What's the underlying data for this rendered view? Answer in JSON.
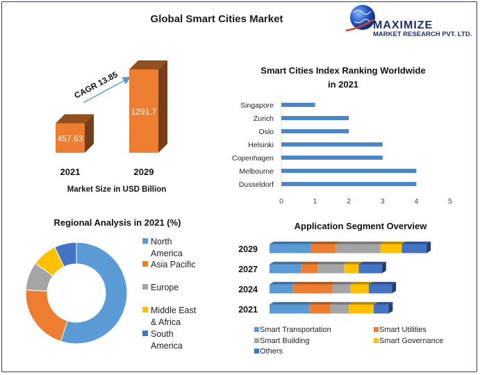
{
  "header": {
    "title": "Global Smart Cities Market",
    "logo_name": "MAXIMIZE",
    "logo_subtitle": "MARKET RESEARCH PVT. LTD."
  },
  "colors": {
    "orange": "#ed7d31",
    "orange_dark": "#a54a0e",
    "blue": "#4a86c8",
    "navy": "#1f2d6b"
  },
  "chart_data": [
    {
      "type": "bar",
      "categories": [
        "2021",
        "2029"
      ],
      "values": [
        457.63,
        1291.7
      ],
      "value_labels": [
        "457.63",
        "1291.7"
      ],
      "xlabel": "Market Size in USD Billion",
      "annotation": "CAGR 13.85",
      "colors": [
        "#ed7d31"
      ]
    },
    {
      "type": "bar",
      "orientation": "horizontal",
      "title": "Smart Cities Index Ranking Worldwide in 2021",
      "title_lines": [
        "Smart Cities Index Ranking Worldwide",
        "in 2021"
      ],
      "categories": [
        "Singapore",
        "Zurich",
        "Oslo",
        "Helsinki",
        "Copenhagen",
        "Melbourne",
        "Dusseldorf"
      ],
      "values": [
        1,
        2,
        2,
        3,
        3,
        4,
        4
      ],
      "xlim": [
        0,
        5
      ],
      "xticks": [
        "0",
        "1",
        "2",
        "3",
        "4",
        "5"
      ],
      "grid": false,
      "colors": [
        "#4a86c8"
      ]
    },
    {
      "type": "pie",
      "donut": true,
      "title": "Regional Analysis in 2021 (%)",
      "categories": [
        "North America",
        "Asia Pacific",
        "Europe",
        "Middle East & Africa",
        "South America"
      ],
      "legend_lines": [
        [
          "North",
          "America"
        ],
        [
          "Asia Pacific"
        ],
        [
          "Europe"
        ],
        [
          "Middle East",
          "& Africa"
        ],
        [
          "South",
          "America"
        ]
      ],
      "values": [
        55,
        21,
        9,
        8,
        7
      ],
      "colors": [
        "#5b9bd5",
        "#ed7d31",
        "#a5a5a5",
        "#ffc000",
        "#4472c4"
      ],
      "legend": "right"
    },
    {
      "type": "bar",
      "orientation": "horizontal",
      "stacked": true,
      "title": "Application Segment Overview",
      "categories": [
        "2029",
        "2027",
        "2024",
        "2021"
      ],
      "series": [
        {
          "name": "Smart Transportation",
          "color": "#5b9bd5",
          "values": [
            25,
            19,
            14,
            24
          ]
        },
        {
          "name": "Smart Utilities",
          "color": "#ed7d31",
          "values": [
            15,
            10,
            24,
            13
          ]
        },
        {
          "name": "Smart Building",
          "color": "#a5a5a5",
          "values": [
            27,
            16,
            11,
            11
          ]
        },
        {
          "name": "Smart Governance",
          "color": "#ffc000",
          "values": [
            13,
            9,
            11,
            15
          ]
        },
        {
          "name": "Others",
          "color": "#4472c4",
          "values": [
            15,
            14,
            14,
            9
          ]
        }
      ],
      "legend": "bottom"
    }
  ]
}
